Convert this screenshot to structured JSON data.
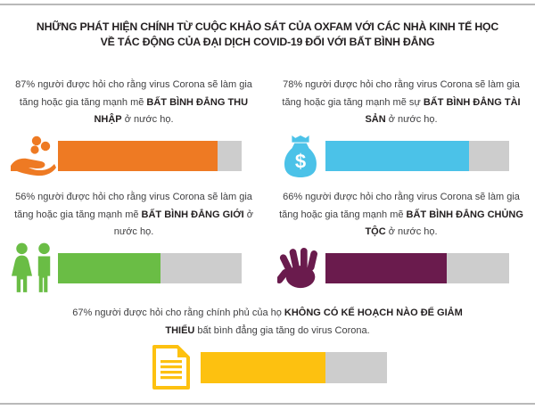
{
  "title": {
    "line1": "NHỮNG PHÁT HIỆN CHÍNH TỪ CUỘC KHẢO SÁT CỦA OXFAM VỚI CÁC NHÀ KINH TẾ HỌC",
    "line2": "VỀ TÁC ĐỘNG CỦA ĐẠI DỊCH COVID-19 ĐỐI VỚI BẤT BÌNH ĐẲNG"
  },
  "stats": [
    {
      "id": "income-inequality",
      "percent": 87,
      "text_pre": "87% người được hỏi cho rằng virus Corona sẽ làm gia tăng hoặc gia tăng mạnh mẽ ",
      "text_bold": "BẤT BÌNH ĐẲNG THU NHẬP",
      "text_post": " ở nước họ.",
      "icon": "hand-receiving-coins-icon",
      "bar_color": "#EE7A23"
    },
    {
      "id": "wealth-inequality",
      "percent": 78,
      "text_pre": "78% người được hỏi cho rằng virus Corona sẽ làm gia tăng hoặc gia tăng mạnh mẽ sự ",
      "text_bold": "BẤT BÌNH ĐẲNG TÀI SẢN",
      "text_post": " ở nước họ.",
      "icon": "money-bag-icon",
      "bar_color": "#4BC2E8"
    },
    {
      "id": "gender-inequality",
      "percent": 56,
      "text_pre": "56% người được hỏi cho rằng virus Corona sẽ làm gia tăng hoặc gia tăng mạnh mẽ ",
      "text_bold": "BẤT BÌNH ĐẲNG GIỚI",
      "text_post": " ở nước họ.",
      "icon": "two-people-icon",
      "bar_color": "#6ABD45"
    },
    {
      "id": "racial-inequality",
      "percent": 66,
      "text_pre": "66% người được hỏi cho rằng virus Corona sẽ làm gia tăng hoặc gia tăng mạnh mẽ ",
      "text_bold": "BẤT BÌNH ĐẲNG CHỦNG TỘC",
      "text_post": " ở nước họ.",
      "icon": "open-palm-hand-icon",
      "bar_color": "#6A1B4D"
    },
    {
      "id": "no-government-plan",
      "percent": 67,
      "text_pre": "67% người được hỏi cho rằng chính phủ của họ ",
      "text_bold": "KHÔNG CÓ KẾ HOẠCH NÀO ĐỂ GIẢM THIỂU",
      "text_post": " bất bình đẳng gia tăng do virus Corona.",
      "icon": "document-icon",
      "bar_color": "#FDC110"
    }
  ],
  "colors": {
    "orange": "#EE7A23",
    "sky_blue": "#4BC2E8",
    "green": "#6ABD45",
    "plum": "#6A1B4D",
    "yellow": "#FDC110",
    "bar_track_gray": "#CDCDCD",
    "rule_gray": "#B9B9B9",
    "heading_text": "#231F20",
    "body_text": "#404042"
  },
  "chart_data": {
    "type": "bar",
    "orientation": "horizontal",
    "title": "Những phát hiện chính từ cuộc khảo sát của Oxfam với các nhà kinh tế học về tác động của đại dịch COVID-19 đối với bất bình đẳng",
    "categories": [
      "Bất bình đẳng thu nhập",
      "Bất bình đẳng tài sản",
      "Bất bình đẳng giới",
      "Bất bình đẳng chủng tộc",
      "Chính phủ không có kế hoạch nào để giảm thiểu"
    ],
    "values": [
      87,
      78,
      56,
      66,
      67
    ],
    "unit": "%",
    "xlim": [
      0,
      100
    ],
    "colors": [
      "#EE7A23",
      "#4BC2E8",
      "#6ABD45",
      "#6A1B4D",
      "#FDC110"
    ],
    "track_color": "#CDCDCD",
    "grid": false,
    "legend": "none"
  }
}
